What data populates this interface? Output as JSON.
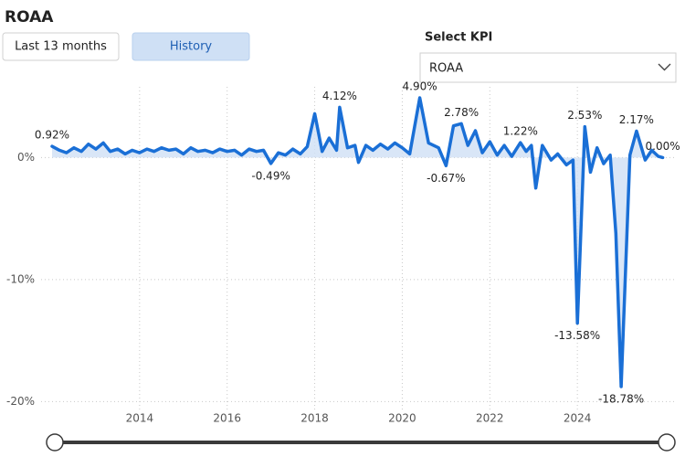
{
  "header": {
    "title": "ROAA"
  },
  "buttons": [
    "Last 13 months",
    "History"
  ],
  "kpi_selector": {
    "label": "Select KPI",
    "value": "ROAA"
  },
  "chart_data": {
    "type": "line",
    "color": "#1a6fd6",
    "area_color": "#cfe0f5",
    "x": [
      2012.0,
      2012.17,
      2012.33,
      2012.5,
      2012.67,
      2012.83,
      2013.0,
      2013.17,
      2013.33,
      2013.5,
      2013.67,
      2013.83,
      2014.0,
      2014.17,
      2014.33,
      2014.5,
      2014.67,
      2014.83,
      2015.0,
      2015.17,
      2015.33,
      2015.5,
      2015.67,
      2015.83,
      2016.0,
      2016.17,
      2016.33,
      2016.5,
      2016.67,
      2016.83,
      2017.0,
      2017.17,
      2017.33,
      2017.5,
      2017.67,
      2017.83,
      2018.0,
      2018.17,
      2018.33,
      2018.5,
      2018.57,
      2018.75,
      2018.92,
      2019.0,
      2019.17,
      2019.33,
      2019.5,
      2019.67,
      2019.83,
      2020.0,
      2020.17,
      2020.4,
      2020.6,
      2020.83,
      2021.0,
      2021.17,
      2021.35,
      2021.5,
      2021.67,
      2021.83,
      2022.0,
      2022.17,
      2022.33,
      2022.5,
      2022.7,
      2022.83,
      2022.95,
      2023.05,
      2023.2,
      2023.4,
      2023.55,
      2023.75,
      2023.9,
      2024.0,
      2024.17,
      2024.3,
      2024.45,
      2024.6,
      2024.75,
      2024.88,
      2025.0,
      2025.2,
      2025.35,
      2025.55,
      2025.7,
      2025.85,
      2025.95
    ],
    "values": [
      0.92,
      0.6,
      0.4,
      0.8,
      0.5,
      1.1,
      0.7,
      1.2,
      0.5,
      0.7,
      0.3,
      0.6,
      0.4,
      0.7,
      0.5,
      0.8,
      0.6,
      0.7,
      0.3,
      0.8,
      0.5,
      0.6,
      0.4,
      0.7,
      0.5,
      0.6,
      0.2,
      0.7,
      0.5,
      0.6,
      -0.49,
      0.4,
      0.2,
      0.7,
      0.3,
      0.9,
      3.6,
      0.5,
      1.6,
      0.6,
      4.12,
      0.8,
      1.0,
      -0.4,
      1.0,
      0.6,
      1.1,
      0.7,
      1.2,
      0.8,
      0.3,
      4.9,
      1.2,
      0.8,
      -0.67,
      2.6,
      2.78,
      1.0,
      2.2,
      0.4,
      1.3,
      0.2,
      1.0,
      0.1,
      1.22,
      0.5,
      1.0,
      -2.5,
      1.0,
      -0.2,
      0.3,
      -0.6,
      -0.2,
      -13.58,
      2.53,
      -1.2,
      0.8,
      -0.5,
      0.2,
      -6.2,
      -18.78,
      0.2,
      2.17,
      -0.2,
      0.6,
      0.1,
      0.0
    ],
    "value_labels": [
      "0.92%",
      null,
      null,
      null,
      null,
      null,
      null,
      null,
      null,
      null,
      null,
      null,
      null,
      null,
      null,
      null,
      null,
      null,
      null,
      null,
      null,
      null,
      null,
      null,
      null,
      null,
      null,
      null,
      null,
      null,
      "-0.49%",
      null,
      null,
      null,
      null,
      null,
      null,
      null,
      null,
      null,
      "4.12%",
      null,
      null,
      null,
      null,
      null,
      null,
      null,
      null,
      null,
      null,
      "4.90%",
      null,
      null,
      "-0.67%",
      null,
      "2.78%",
      null,
      null,
      null,
      null,
      null,
      null,
      null,
      "1.22%",
      null,
      null,
      null,
      null,
      null,
      null,
      null,
      null,
      "-13.58%",
      "2.53%",
      null,
      null,
      null,
      null,
      null,
      "-18.78%",
      null,
      "2.17%",
      null,
      null,
      null,
      "0.00%"
    ],
    "xlim": [
      2011.75,
      2026.25
    ],
    "xticks": [
      2014,
      2016,
      2018,
      2020,
      2022,
      2024
    ],
    "ylim": [
      -20.8,
      5.8
    ],
    "yticks": [
      {
        "value": 0,
        "label": "0%"
      },
      {
        "value": -10,
        "label": "-10%"
      },
      {
        "value": -20,
        "label": "-20%"
      }
    ],
    "grid": true
  }
}
